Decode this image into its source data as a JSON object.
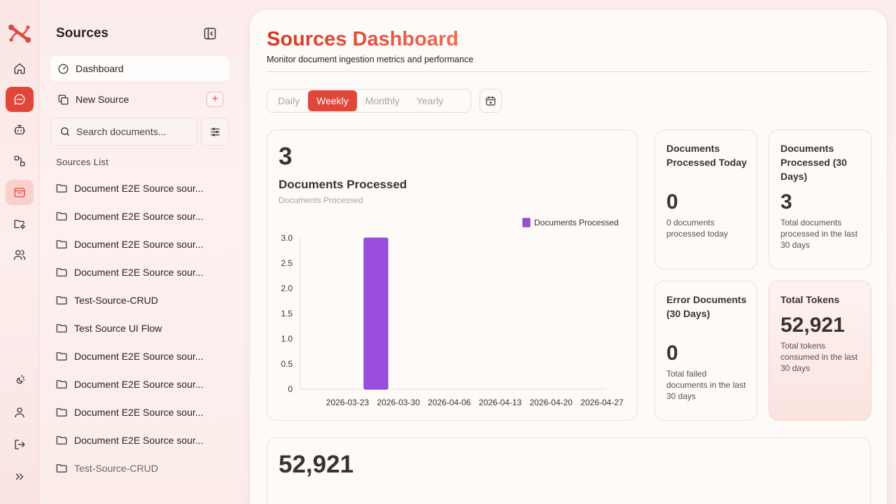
{
  "sidebar": {
    "title": "Sources",
    "nav": [
      {
        "label": "Dashboard"
      },
      {
        "label": "New Source"
      }
    ],
    "search": {
      "placeholder": "Search documents..."
    },
    "section_label": "Sources List",
    "sources": [
      "Document E2E Source sour...",
      "Document E2E Source sour...",
      "Document E2E Source sour...",
      "Document E2E Source sour...",
      "Test-Source-CRUD",
      "Test Source UI Flow",
      "Document E2E Source sour...",
      "Document E2E Source sour...",
      "Document E2E Source sour...",
      "Document E2E Source sour...",
      "Test-Source-CRUD"
    ]
  },
  "header": {
    "title": "Sources Dashboard",
    "subtitle": "Monitor document ingestion metrics and performance"
  },
  "period_tabs": [
    "Daily",
    "Weekly",
    "Monthly",
    "Yearly"
  ],
  "active_tab": "Weekly",
  "chart_card": {
    "big_number": "3",
    "title": "Documents Processed",
    "subtitle": "Documents Processed"
  },
  "chart_data": {
    "type": "bar",
    "categories": [
      "2026-03-23",
      "2026-03-30",
      "2026-04-06",
      "2026-04-13",
      "2026-04-20",
      "2026-04-27"
    ],
    "series": [
      {
        "name": "Documents Processed",
        "values": [
          3,
          0,
          0,
          0,
          0,
          0
        ],
        "color": "#9a4fdc"
      }
    ],
    "x_ticks": [
      "2026-03-23",
      "2026-03-30",
      "2026-04-06",
      "2026-04-13",
      "2026-04-20",
      "2026-04-27"
    ],
    "y_ticks": [
      "0",
      "0.5",
      "1.0",
      "1.5",
      "2.0",
      "2.5",
      "3.0"
    ],
    "ylim": [
      0,
      3
    ],
    "legend": "top-right",
    "grid": false
  },
  "stats": [
    {
      "title": "Documents Processed Today",
      "value": "0",
      "desc": "0 documents processed today"
    },
    {
      "title": "Documents Processed (30 Days)",
      "value": "3",
      "desc": "Total documents processed in the last 30 days"
    },
    {
      "title": "Error Documents (30 Days)",
      "value": "0",
      "desc": "Total failed documents in the last 30 days"
    },
    {
      "title": "Total Tokens",
      "value": "52,921",
      "desc": "Total tokens consumed in the last 30 days"
    }
  ],
  "bottom_card": {
    "big_number": "52,921"
  },
  "colors": {
    "accent": "#e0473a",
    "title_gradient_start": "#d9351f",
    "title_gradient_end": "#f06b52",
    "bar": "#9a4fdc"
  },
  "icons": {
    "rail": [
      "logo-icon",
      "home-icon",
      "chat-icon",
      "bot-icon",
      "workflow-icon",
      "sources-icon",
      "folder-settings-icon",
      "users-icon",
      "theme-icon",
      "user-icon",
      "logout-icon",
      "expand-icon"
    ]
  }
}
